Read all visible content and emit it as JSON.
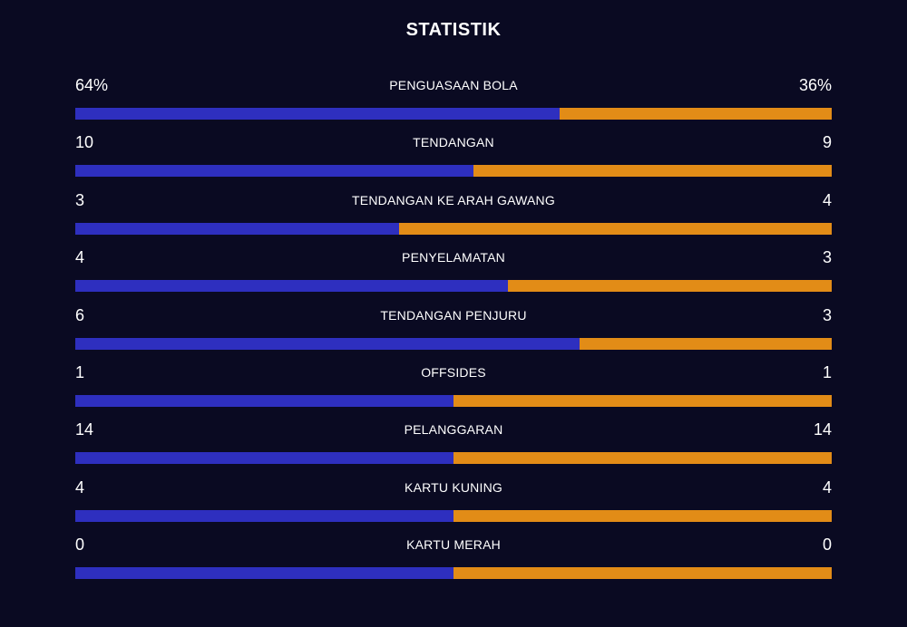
{
  "title": "STATISTIK",
  "colors": {
    "background": "#0a0a22",
    "home": "#2e2fbf",
    "away": "#e28c17"
  },
  "chart_data": {
    "type": "bar",
    "title": "STATISTIK",
    "categories": [
      "PENGUASAAN BOLA",
      "TENDANGAN",
      "TENDANGAN KE ARAH GAWANG",
      "PENYELAMATAN",
      "TENDANGAN PENJURU",
      "OFFSIDES",
      "PELANGGARAN",
      "KARTU KUNING",
      "KARTU MERAH"
    ],
    "home_labels": [
      "64%",
      "10",
      "3",
      "4",
      "6",
      "1",
      "14",
      "4",
      "0"
    ],
    "away_labels": [
      "36%",
      "9",
      "4",
      "3",
      "3",
      "1",
      "14",
      "4",
      "0"
    ],
    "home_values": [
      64,
      10,
      3,
      4,
      6,
      1,
      14,
      4,
      0
    ],
    "away_values": [
      36,
      9,
      4,
      3,
      3,
      1,
      14,
      4,
      0
    ]
  }
}
